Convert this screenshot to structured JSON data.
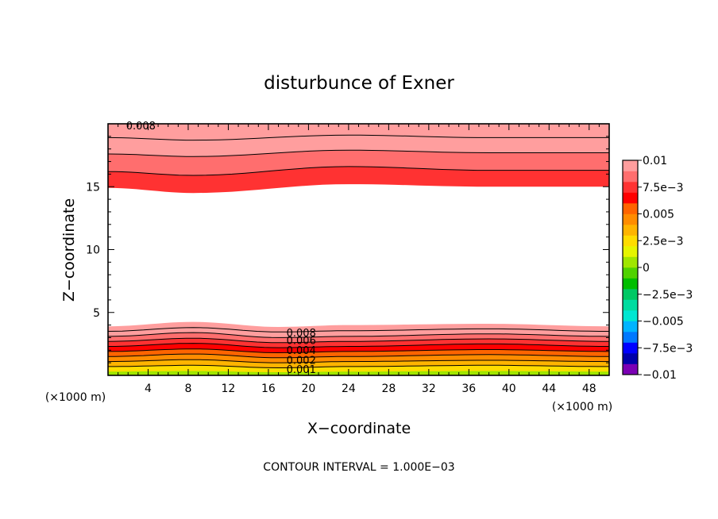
{
  "chart_data": {
    "type": "contour",
    "title": "disturbunce of Exner",
    "xlabel": "X−coordinate",
    "ylabel": "Z−coordinate",
    "xlim": [
      0,
      50
    ],
    "ylim": [
      0,
      20
    ],
    "x_ticks": [
      4,
      8,
      12,
      16,
      20,
      24,
      28,
      32,
      36,
      40,
      44,
      48
    ],
    "x_tick_labels": [
      "4",
      "8",
      "12",
      "16",
      "20",
      "24",
      "28",
      "32",
      "36",
      "40",
      "44",
      "48"
    ],
    "y_ticks": [
      5,
      10,
      15
    ],
    "y_tick_labels": [
      "5",
      "10",
      "15"
    ],
    "x_unit_left": "(×1000 m)",
    "x_unit_right": "(×1000 m)",
    "contour_interval_text": "CONTOUR INTERVAL = 1.000E−03",
    "colorbar": {
      "colors": [
        "#7b00b4",
        "#0000aa",
        "#0000ff",
        "#0078ff",
        "#00b4ff",
        "#00e6d2",
        "#00dca0",
        "#00c864",
        "#00be00",
        "#50d200",
        "#a0e600",
        "#e6f500",
        "#ffdc00",
        "#ffb400",
        "#ff8c00",
        "#ff6400",
        "#ff0000",
        "#ff3232",
        "#ff6e6e",
        "#ff9e9e"
      ],
      "labels": [
        "0.01",
        "7.5e−3",
        "0.005",
        "2.5e−3",
        "0",
        "−2.5e−3",
        "−0.005",
        "−7.5e−3",
        "−0.01"
      ],
      "range": [
        -0.01,
        0.01
      ]
    },
    "top_band": {
      "fill_levels": [
        0.007,
        0.008,
        0.009,
        0.01
      ],
      "boundaries": [
        {
          "x": [
            0,
            8.5,
            24,
            38,
            50
          ],
          "y": [
            14.9,
            14.5,
            15.2,
            15.0,
            15.0
          ]
        },
        {
          "x": [
            0,
            8.5,
            24,
            38,
            50
          ],
          "y": [
            16.2,
            15.9,
            16.6,
            16.3,
            16.3
          ]
        },
        {
          "x": [
            0,
            8.5,
            24,
            38,
            50
          ],
          "y": [
            17.6,
            17.4,
            17.9,
            17.7,
            17.7
          ]
        },
        {
          "x": [
            0,
            8.5,
            24,
            38,
            50
          ],
          "y": [
            18.9,
            18.7,
            19.1,
            18.9,
            18.9
          ]
        }
      ],
      "contour_label": "0.008"
    },
    "bottom_band": {
      "fill_levels": [
        0.0005,
        0.001,
        0.002,
        0.003,
        0.004,
        0.005,
        0.006,
        0.007,
        0.008,
        0.009,
        0.01
      ],
      "boundaries": [
        {
          "x": [
            0,
            8.5,
            17,
            24,
            38,
            50
          ],
          "y": [
            0.3,
            0.35,
            0.25,
            0.3,
            0.35,
            0.3
          ]
        },
        {
          "x": [
            0,
            8.5,
            17,
            24,
            38,
            50
          ],
          "y": [
            0.7,
            0.8,
            0.6,
            0.7,
            0.8,
            0.7
          ]
        },
        {
          "x": [
            0,
            8.5,
            17,
            24,
            38,
            50
          ],
          "y": [
            1.1,
            1.25,
            1.0,
            1.1,
            1.2,
            1.1
          ]
        },
        {
          "x": [
            0,
            8.5,
            17,
            24,
            38,
            50
          ],
          "y": [
            1.5,
            1.7,
            1.4,
            1.5,
            1.65,
            1.5
          ]
        },
        {
          "x": [
            0,
            8.5,
            17,
            24,
            38,
            50
          ],
          "y": [
            1.9,
            2.1,
            1.8,
            1.9,
            2.05,
            1.9
          ]
        },
        {
          "x": [
            0,
            8.5,
            17,
            24,
            38,
            50
          ],
          "y": [
            2.3,
            2.55,
            2.2,
            2.3,
            2.5,
            2.3
          ]
        },
        {
          "x": [
            0,
            8.5,
            17,
            24,
            38,
            50
          ],
          "y": [
            2.7,
            2.95,
            2.6,
            2.7,
            2.9,
            2.7
          ]
        },
        {
          "x": [
            0,
            8.5,
            17,
            24,
            38,
            50
          ],
          "y": [
            3.1,
            3.4,
            3.0,
            3.1,
            3.3,
            3.1
          ]
        },
        {
          "x": [
            0,
            8.5,
            17,
            24,
            38,
            50
          ],
          "y": [
            3.5,
            3.8,
            3.45,
            3.55,
            3.7,
            3.5
          ]
        },
        {
          "x": [
            0,
            8.5,
            17,
            24,
            38,
            50
          ],
          "y": [
            3.9,
            4.25,
            3.85,
            4.0,
            4.1,
            3.9
          ]
        }
      ],
      "contour_labels": [
        {
          "text": "0.008",
          "x": 17.8,
          "y": 3.1
        },
        {
          "text": "0.006",
          "x": 17.8,
          "y": 2.5
        },
        {
          "text": "0.004",
          "x": 17.8,
          "y": 1.7
        },
        {
          "text": "0.002",
          "x": 17.8,
          "y": 0.9
        },
        {
          "text": "0.001",
          "x": 17.8,
          "y": 0.2
        }
      ]
    }
  }
}
